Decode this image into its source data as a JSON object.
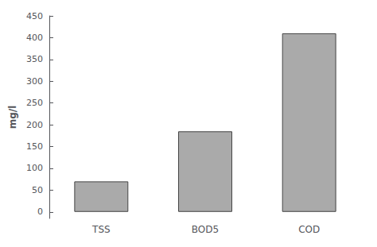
{
  "chart_data": {
    "type": "bar",
    "categories": [
      "TSS",
      "BOD5",
      "COD"
    ],
    "values": [
      70,
      185,
      410
    ],
    "color": "#aaaaaa",
    "ylabel": "mg/l",
    "ylim": [
      -15,
      450
    ],
    "yticks": [
      0,
      50,
      100,
      150,
      200,
      250,
      300,
      350,
      400,
      450
    ],
    "grid": false
  }
}
